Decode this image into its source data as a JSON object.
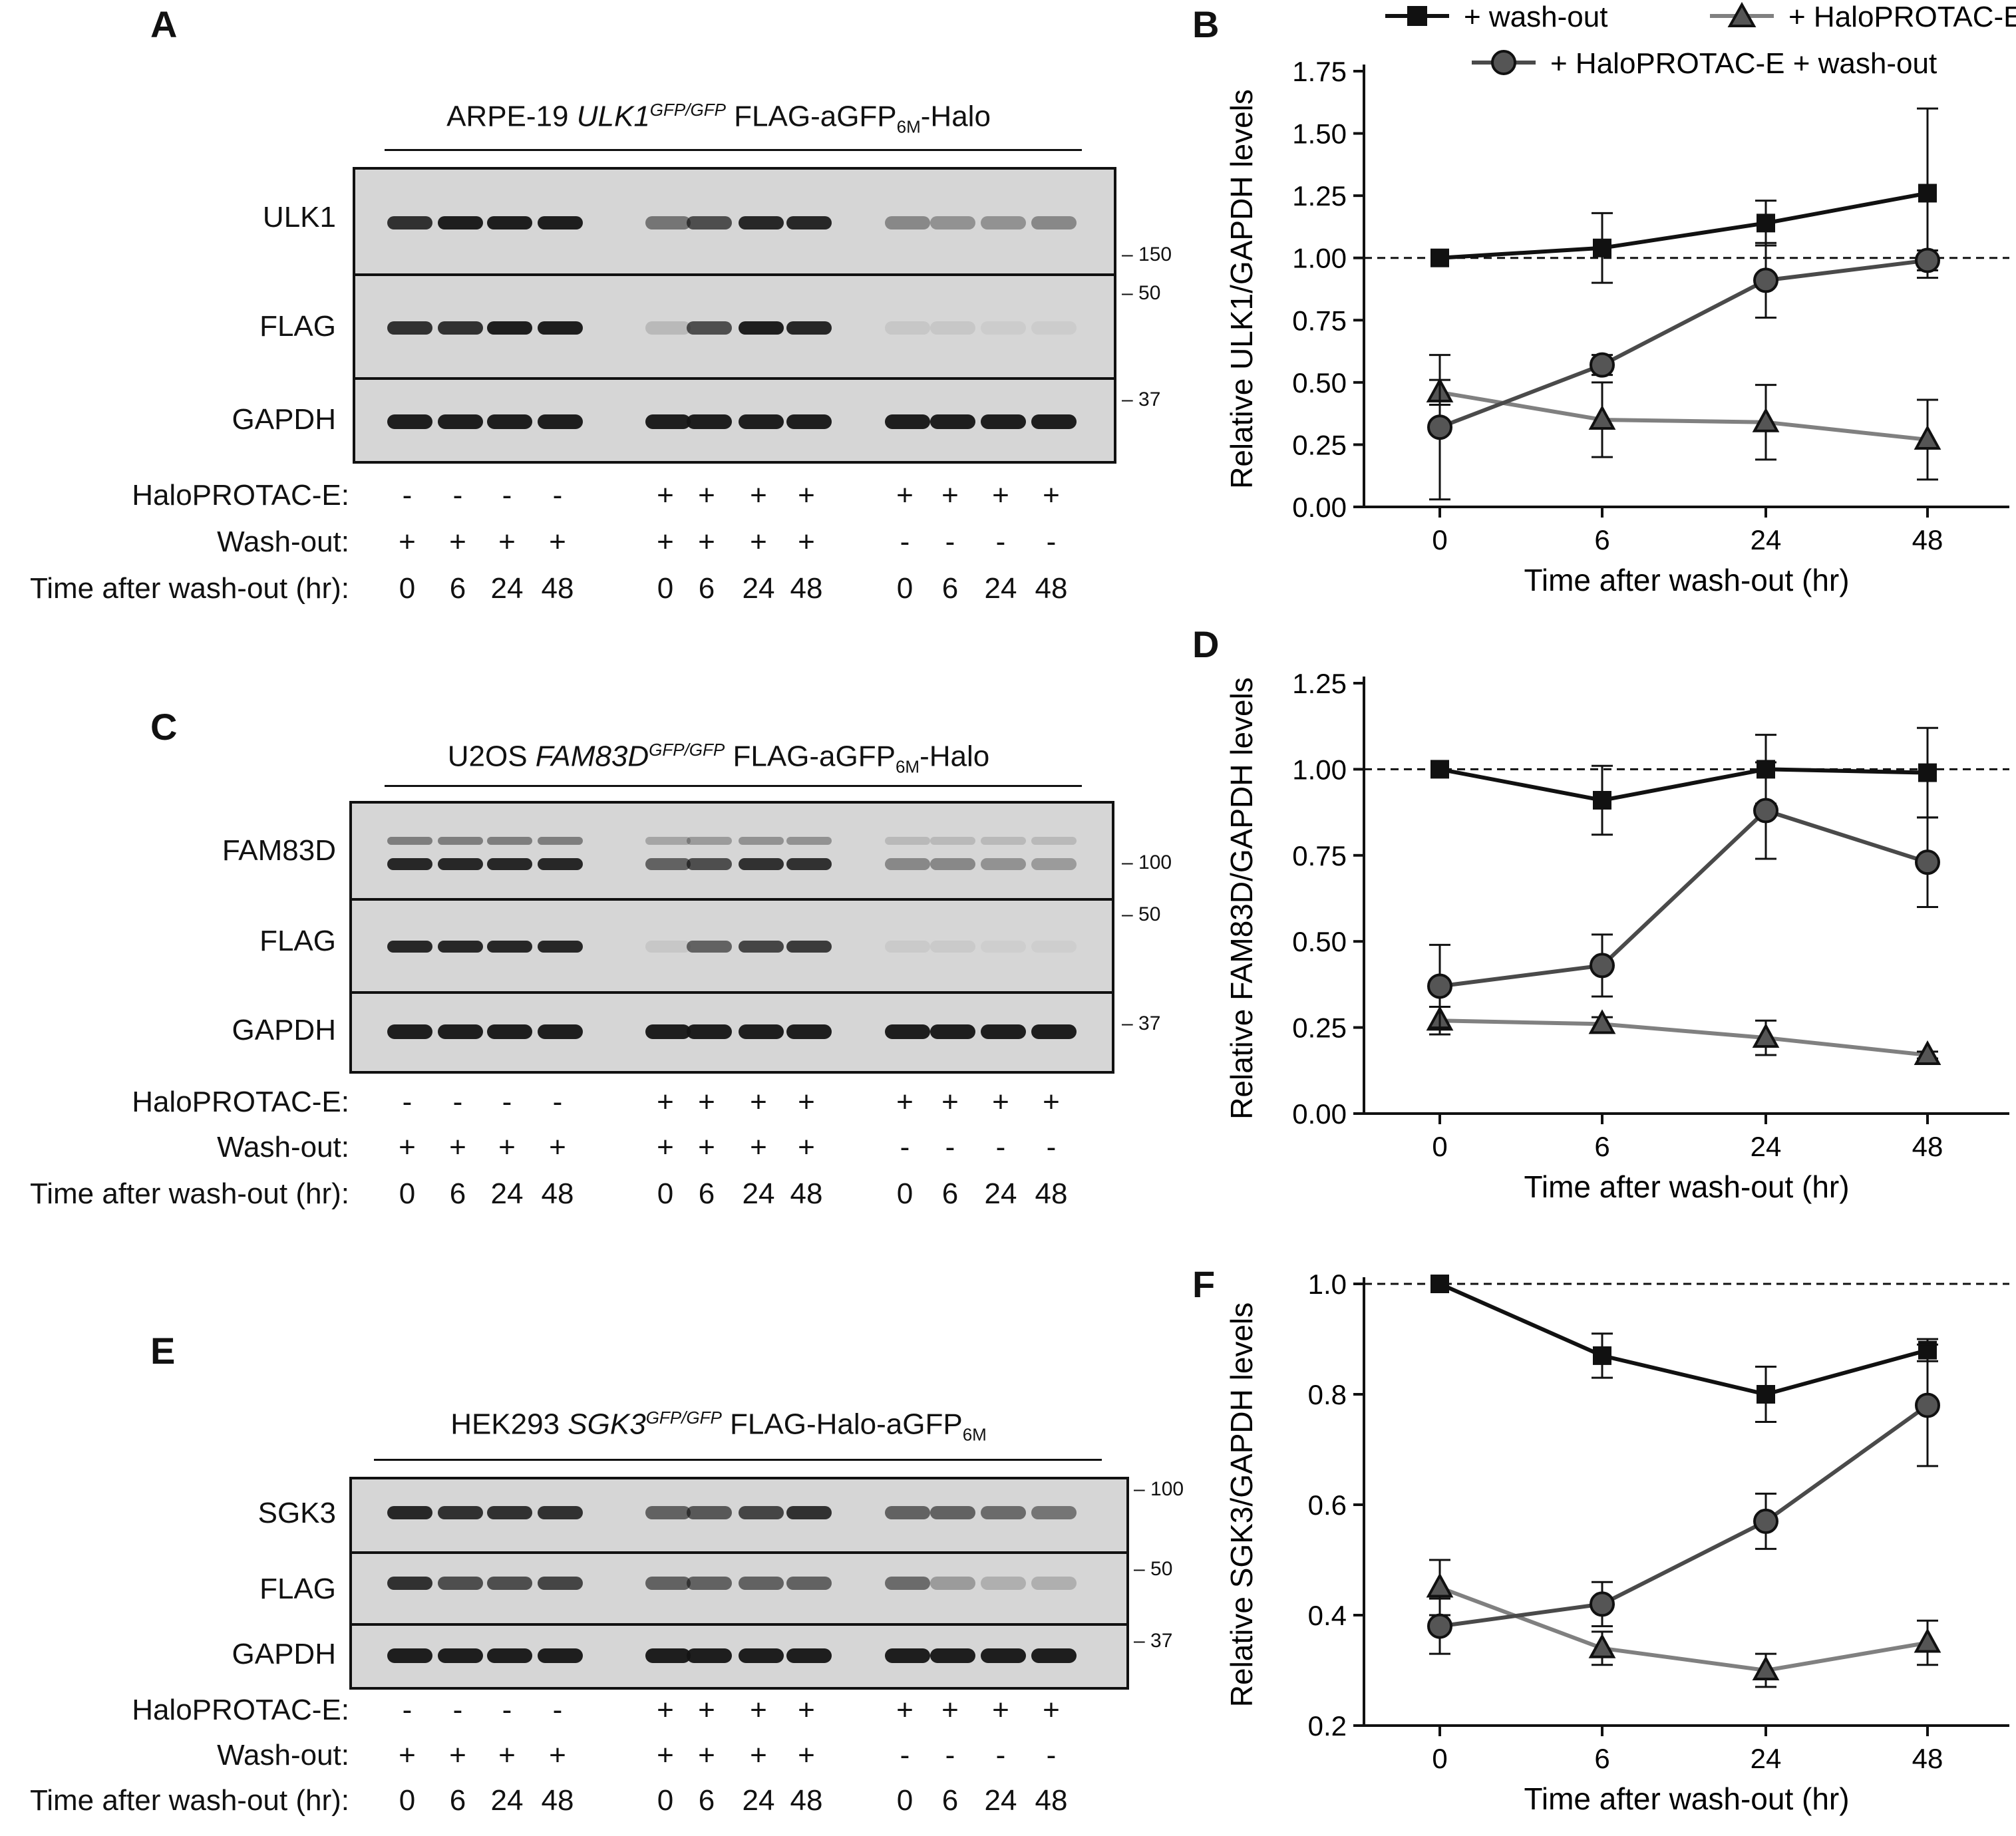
{
  "legend": {
    "washout": "+ wash-out",
    "halo": "+ HaloPROTAC-E",
    "halo_washout": "+ HaloPROTAC-E + wash-out"
  },
  "panels": {
    "A": {
      "letter": "A",
      "cell": "ARPE-19 ",
      "gene": "ULK1",
      "sup": "GFP/GFP",
      "construct": " FLAG-aGFP",
      "sub": "6M",
      "tail": "-Halo",
      "rows": [
        "ULK1",
        "FLAG",
        "GAPDH"
      ],
      "mw": [
        "150",
        "50",
        "37"
      ]
    },
    "C": {
      "letter": "C",
      "cell": "U2OS ",
      "gene": "FAM83D",
      "sup": "GFP/GFP",
      "construct": " FLAG-aGFP",
      "sub": "6M",
      "tail": "-Halo",
      "rows": [
        "FAM83D",
        "FLAG",
        "GAPDH"
      ],
      "mw": [
        "100",
        "50",
        "37"
      ]
    },
    "E": {
      "letter": "E",
      "cell": "HEK293 ",
      "gene": "SGK3",
      "sup": "GFP/GFP",
      "construct": " FLAG-Halo-aGFP",
      "sub": "6M",
      "tail": "",
      "rows": [
        "SGK3",
        "FLAG",
        "GAPDH"
      ],
      "mw": [
        "100",
        "50",
        "37"
      ]
    }
  },
  "conditions": {
    "labels": [
      "HaloPROTAC-E:",
      "Wash-out:",
      "Time after wash-out (hr):"
    ],
    "halo": [
      "-",
      "-",
      "-",
      "-",
      "+",
      "+",
      "+",
      "+",
      "+",
      "+",
      "+",
      "+"
    ],
    "wash": [
      "+",
      "+",
      "+",
      "+",
      "+",
      "+",
      "+",
      "+",
      "-",
      "-",
      "-",
      "-"
    ],
    "time": [
      "0",
      "6",
      "24",
      "48",
      "0",
      "6",
      "24",
      "48",
      "0",
      "6",
      "24",
      "48"
    ]
  },
  "chart_data": [
    {
      "panel": "B",
      "type": "line",
      "xlabel": "Time after wash-out (hr)",
      "ylabel": "Relative ULK1/GAPDH levels",
      "categories": [
        "0",
        "6",
        "24",
        "48"
      ],
      "ylim": [
        0,
        1.75
      ],
      "yticks": [
        "0.00",
        "0.25",
        "0.50",
        "0.75",
        "1.00",
        "1.25",
        "1.50",
        "1.75"
      ],
      "reference_line": 1.0,
      "series": [
        {
          "name": "+ wash-out",
          "values": [
            1.0,
            1.04,
            1.14,
            1.26
          ],
          "errors": [
            0,
            0.14,
            0.09,
            0.34
          ]
        },
        {
          "name": "+ HaloPROTAC-E",
          "values": [
            0.46,
            0.35,
            0.34,
            0.27
          ],
          "errors": [
            0.05,
            0.15,
            0.15,
            0.16
          ]
        },
        {
          "name": "+ HaloPROTAC-E + wash-out",
          "values": [
            0.32,
            0.57,
            0.91,
            0.99
          ],
          "errors": [
            0.29,
            0.04,
            0.15,
            0.04
          ]
        }
      ]
    },
    {
      "panel": "D",
      "type": "line",
      "xlabel": "Time after wash-out (hr)",
      "ylabel": "Relative FAM83D/GAPDH levels",
      "categories": [
        "0",
        "6",
        "24",
        "48"
      ],
      "ylim": [
        0,
        1.25
      ],
      "yticks": [
        "0.00",
        "0.25",
        "0.50",
        "0.75",
        "1.00",
        "1.25"
      ],
      "reference_line": 1.0,
      "series": [
        {
          "name": "+ wash-out",
          "values": [
            1.0,
            0.91,
            1.0,
            0.99
          ],
          "errors": [
            0,
            0.1,
            0.1,
            0.13
          ]
        },
        {
          "name": "+ HaloPROTAC-E",
          "values": [
            0.27,
            0.26,
            0.22,
            0.17
          ],
          "errors": [
            0.04,
            0.02,
            0.05,
            0.01
          ]
        },
        {
          "name": "+ HaloPROTAC-E + wash-out",
          "values": [
            0.37,
            0.43,
            0.88,
            0.73
          ],
          "errors": [
            0.12,
            0.09,
            0.14,
            0.13
          ]
        }
      ]
    },
    {
      "panel": "F",
      "type": "line",
      "xlabel": "Time after wash-out (hr)",
      "ylabel": "Relative SGK3/GAPDH levels",
      "categories": [
        "0",
        "6",
        "24",
        "48"
      ],
      "ylim": [
        0.2,
        1.0
      ],
      "yticks": [
        "0.2",
        "0.4",
        "0.6",
        "0.8",
        "1.0"
      ],
      "reference_line": 1.0,
      "series": [
        {
          "name": "+ wash-out",
          "values": [
            1.0,
            0.87,
            0.8,
            0.88
          ],
          "errors": [
            0,
            0.04,
            0.05,
            0.02
          ]
        },
        {
          "name": "+ HaloPROTAC-E",
          "values": [
            0.45,
            0.34,
            0.3,
            0.35
          ],
          "errors": [
            0.05,
            0.03,
            0.03,
            0.04
          ]
        },
        {
          "name": "+ HaloPROTAC-E + wash-out",
          "values": [
            0.38,
            0.42,
            0.57,
            0.78
          ],
          "errors": [
            0.05,
            0.04,
            0.05,
            0.11
          ]
        }
      ]
    }
  ],
  "colors": {
    "washout": "#111111",
    "halo": "#808080",
    "halo_washout": "#4a4a4a",
    "halo_fill": "#555555"
  }
}
